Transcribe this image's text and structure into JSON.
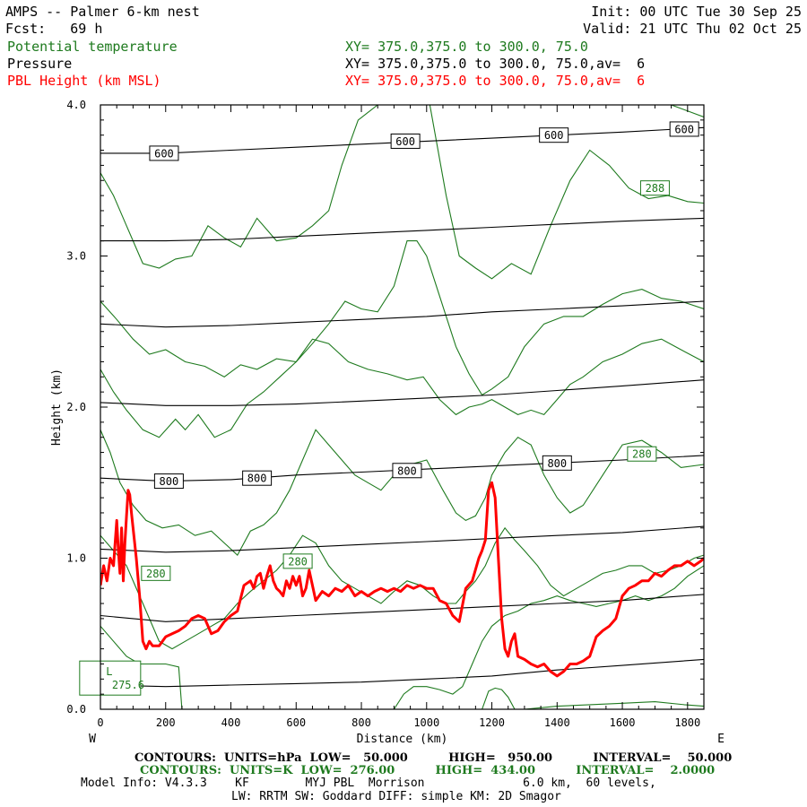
{
  "header": {
    "line1_left": "AMPS -- Palmer 6-km nest",
    "line2_left": "Fcst:   69 h",
    "line1_right": "Init: 00 UTC Tue 30 Sep 25",
    "line2_right": "Valid: 21 UTC Thu 02 Oct 25",
    "fields": [
      {
        "name": "Potential temperature",
        "xy": "XY= 375.0,375.0 to 300.0, 75.0",
        "color": "#1e7a1e"
      },
      {
        "name": "Pressure",
        "xy": "XY= 375.0,375.0 to 300.0, 75.0,av=  6",
        "color": "#000000"
      },
      {
        "name": "PBL Height (km MSL)",
        "xy": "XY= 375.0,375.0 to 300.0, 75.0,av=  6",
        "color": "#ff0000"
      }
    ]
  },
  "footer": {
    "contours_p": "CONTOURS:  UNITS=hPa  LOW=   50.000          HIGH=   950.00          INTERVAL=    50.000",
    "contours_t": "CONTOURS:  UNITS=K  LOW=  276.00          HIGH=  434.00          INTERVAL=    2.0000",
    "model_info": "Model Info: V4.3.3    KF        MYJ PBL  Morrison              6.0 km,  60 levels,",
    "model_info2": "LW: RRTM SW: Goddard DIFF: simple KM: 2D Smagor"
  },
  "chart_data": {
    "type": "line",
    "xlabel": "Distance (km)",
    "ylabel": "Height (km)",
    "xlim": [
      0,
      1850
    ],
    "ylim": [
      0,
      4.0
    ],
    "x_ticks": [
      "0",
      "200",
      "400",
      "600",
      "800",
      "1000",
      "1200",
      "1400",
      "1600",
      "1800"
    ],
    "y_ticks": [
      "0.0",
      "1.0",
      "2.0",
      "3.0",
      "4.0"
    ],
    "left_end_label": "W",
    "right_end_label": "E",
    "colors": {
      "pressure": "#000000",
      "theta": "#1e7a1e",
      "pbl": "#ff0000"
    },
    "pressure_contours": [
      {
        "x": [
          0,
          200,
          400,
          600,
          800,
          1000,
          1200,
          1400,
          1600,
          1850
        ],
        "y": [
          3.68,
          3.68,
          3.7,
          3.72,
          3.74,
          3.76,
          3.78,
          3.8,
          3.82,
          3.85
        ]
      },
      {
        "x": [
          0,
          200,
          400,
          600,
          800,
          1000,
          1200,
          1400,
          1600,
          1850
        ],
        "y": [
          3.1,
          3.1,
          3.11,
          3.13,
          3.15,
          3.17,
          3.19,
          3.21,
          3.23,
          3.25
        ]
      },
      {
        "x": [
          0,
          200,
          400,
          600,
          800,
          1000,
          1200,
          1400,
          1600,
          1850
        ],
        "y": [
          2.55,
          2.53,
          2.54,
          2.56,
          2.58,
          2.6,
          2.63,
          2.65,
          2.67,
          2.7
        ]
      },
      {
        "x": [
          0,
          200,
          400,
          600,
          800,
          1000,
          1200,
          1400,
          1600,
          1850
        ],
        "y": [
          2.03,
          2.01,
          2.01,
          2.02,
          2.04,
          2.06,
          2.08,
          2.11,
          2.14,
          2.18
        ]
      },
      {
        "x": [
          0,
          200,
          400,
          600,
          800,
          1000,
          1200,
          1400,
          1600,
          1850
        ],
        "y": [
          1.53,
          1.51,
          1.52,
          1.55,
          1.57,
          1.59,
          1.61,
          1.63,
          1.65,
          1.68
        ]
      },
      {
        "x": [
          0,
          200,
          400,
          600,
          800,
          1000,
          1200,
          1400,
          1600,
          1850
        ],
        "y": [
          1.06,
          1.04,
          1.05,
          1.07,
          1.09,
          1.11,
          1.13,
          1.15,
          1.17,
          1.21
        ]
      },
      {
        "x": [
          0,
          200,
          400,
          600,
          800,
          1000,
          1200,
          1400,
          1600,
          1850
        ],
        "y": [
          0.62,
          0.58,
          0.6,
          0.62,
          0.64,
          0.66,
          0.68,
          0.7,
          0.72,
          0.76
        ]
      },
      {
        "x": [
          0,
          200,
          400,
          600,
          800,
          1000,
          1200,
          1400,
          1600,
          1850
        ],
        "y": [
          0.16,
          0.15,
          0.16,
          0.17,
          0.18,
          0.2,
          0.22,
          0.26,
          0.29,
          0.33
        ]
      }
    ],
    "pressure_labels": [
      {
        "text": "600",
        "x": 195,
        "y": 3.68
      },
      {
        "text": "600",
        "x": 935,
        "y": 3.76
      },
      {
        "text": "600",
        "x": 1390,
        "y": 3.8
      },
      {
        "text": "600",
        "x": 1790,
        "y": 3.84
      },
      {
        "text": "800",
        "x": 210,
        "y": 1.51
      },
      {
        "text": "800",
        "x": 480,
        "y": 1.53
      },
      {
        "text": "800",
        "x": 940,
        "y": 1.58
      },
      {
        "text": "800",
        "x": 1400,
        "y": 1.63
      }
    ],
    "theta_contours": [
      {
        "x": [
          0,
          50,
          120,
          180,
          230,
          300,
          340,
          400,
          450,
          520,
          600,
          680,
          740,
          800,
          860,
          920,
          970,
          1020,
          1080,
          1140,
          1170,
          1230,
          1290,
          1350,
          1420,
          1480,
          1550,
          1620,
          1680,
          1750,
          1850
        ],
        "y": [
          4.0,
          4.0,
          4.0,
          4.0,
          4.0,
          4.0,
          4.0,
          4.0,
          4.0,
          4.0,
          4.0,
          4.0,
          4.0,
          4.0,
          4.0,
          4.0,
          4.0,
          4.0,
          4.0,
          4.0,
          4.0,
          4.0,
          4.0,
          4.0,
          4.0,
          4.0,
          4.0,
          4.0,
          4.0,
          4.0,
          3.92
        ]
      },
      {
        "x": [
          0,
          40,
          80,
          130,
          180,
          230,
          280,
          330,
          380,
          430,
          480,
          540,
          600,
          650,
          700,
          740,
          790,
          850,
          900,
          960,
          1010,
          1060,
          1100,
          1150,
          1200,
          1260,
          1320,
          1380,
          1440,
          1500,
          1560,
          1620,
          1680,
          1740,
          1800,
          1850
        ],
        "y": [
          3.55,
          3.4,
          3.2,
          2.95,
          2.92,
          2.98,
          3.0,
          3.2,
          3.12,
          3.06,
          3.25,
          3.1,
          3.12,
          3.2,
          3.3,
          3.6,
          3.9,
          4.0,
          4.0,
          4.0,
          4.0,
          3.4,
          3.0,
          2.92,
          2.85,
          2.95,
          2.88,
          3.2,
          3.5,
          3.7,
          3.6,
          3.45,
          3.38,
          3.4,
          3.36,
          3.35
        ]
      },
      {
        "x": [
          0,
          50,
          100,
          150,
          200,
          260,
          320,
          380,
          430,
          480,
          540,
          600,
          650,
          700,
          750,
          800,
          850,
          900,
          940,
          970,
          1000,
          1030,
          1060,
          1090,
          1130,
          1170,
          1200,
          1250,
          1300,
          1360,
          1420,
          1480,
          1540,
          1600,
          1660,
          1720,
          1780,
          1850
        ],
        "y": [
          2.7,
          2.58,
          2.45,
          2.35,
          2.38,
          2.3,
          2.27,
          2.2,
          2.28,
          2.25,
          2.32,
          2.3,
          2.42,
          2.55,
          2.7,
          2.65,
          2.63,
          2.8,
          3.1,
          3.1,
          3.0,
          2.8,
          2.6,
          2.4,
          2.22,
          2.08,
          2.12,
          2.2,
          2.4,
          2.55,
          2.6,
          2.6,
          2.68,
          2.75,
          2.78,
          2.72,
          2.7,
          2.65
        ]
      },
      {
        "x": [
          0,
          40,
          80,
          130,
          180,
          230,
          260,
          300,
          350,
          400,
          450,
          500,
          550,
          600,
          650,
          700,
          760,
          820,
          880,
          940,
          990,
          1040,
          1090,
          1130,
          1170,
          1200,
          1240,
          1280,
          1320,
          1360,
          1400,
          1440,
          1480,
          1540,
          1600,
          1660,
          1720,
          1780,
          1850
        ],
        "y": [
          2.25,
          2.1,
          1.98,
          1.85,
          1.8,
          1.92,
          1.85,
          1.95,
          1.8,
          1.85,
          2.02,
          2.1,
          2.2,
          2.3,
          2.45,
          2.42,
          2.3,
          2.25,
          2.22,
          2.18,
          2.2,
          2.05,
          1.95,
          2.0,
          2.02,
          2.05,
          2.0,
          1.95,
          1.98,
          1.95,
          2.05,
          2.15,
          2.2,
          2.3,
          2.35,
          2.42,
          2.45,
          2.38,
          2.3
        ]
      },
      {
        "x": [
          0,
          30,
          60,
          100,
          140,
          190,
          240,
          290,
          340,
          380,
          420,
          460,
          500,
          540,
          580,
          620,
          660,
          700,
          740,
          780,
          820,
          860,
          900,
          950,
          1000,
          1050,
          1090,
          1120,
          1150,
          1180,
          1200,
          1240,
          1280,
          1320,
          1360,
          1400,
          1440,
          1480,
          1540,
          1600,
          1660,
          1720,
          1780,
          1850
        ],
        "y": [
          1.85,
          1.7,
          1.5,
          1.35,
          1.25,
          1.2,
          1.22,
          1.15,
          1.18,
          1.1,
          1.02,
          1.18,
          1.22,
          1.3,
          1.45,
          1.65,
          1.85,
          1.75,
          1.65,
          1.55,
          1.5,
          1.45,
          1.55,
          1.62,
          1.65,
          1.45,
          1.3,
          1.25,
          1.28,
          1.4,
          1.55,
          1.7,
          1.8,
          1.75,
          1.55,
          1.4,
          1.3,
          1.35,
          1.55,
          1.75,
          1.78,
          1.7,
          1.6,
          1.62
        ]
      },
      {
        "x": [
          0,
          40,
          80,
          120,
          150,
          180,
          220,
          260,
          300,
          340,
          380,
          420,
          460,
          500,
          540,
          580,
          620,
          660,
          700,
          740,
          780,
          820,
          860,
          900,
          940,
          980,
          1020,
          1060,
          1090,
          1120,
          1150,
          1180,
          1210,
          1240,
          1270,
          1300,
          1340,
          1380,
          1420,
          1460,
          1500,
          1540,
          1580,
          1620,
          1660,
          1700,
          1740,
          1780,
          1820,
          1850
        ],
        "y": [
          1.15,
          1.05,
          0.95,
          0.75,
          0.6,
          0.45,
          0.4,
          0.45,
          0.5,
          0.55,
          0.6,
          0.7,
          0.78,
          0.85,
          0.92,
          1.02,
          1.15,
          1.1,
          0.95,
          0.85,
          0.8,
          0.75,
          0.7,
          0.78,
          0.85,
          0.82,
          0.75,
          0.7,
          0.7,
          0.78,
          0.85,
          0.95,
          1.1,
          1.2,
          1.12,
          1.05,
          0.95,
          0.82,
          0.75,
          0.8,
          0.85,
          0.9,
          0.92,
          0.95,
          0.95,
          0.9,
          0.92,
          0.95,
          1.0,
          1.02
        ]
      },
      {
        "x": [
          900,
          930,
          960,
          1000,
          1040,
          1080,
          1110,
          1140,
          1170,
          1200,
          1240,
          1280,
          1320,
          1360,
          1400,
          1440,
          1480,
          1520,
          1560,
          1600,
          1640,
          1680,
          1720,
          1760,
          1800,
          1850
        ],
        "y": [
          0.0,
          0.1,
          0.15,
          0.15,
          0.13,
          0.1,
          0.15,
          0.3,
          0.45,
          0.55,
          0.62,
          0.65,
          0.7,
          0.72,
          0.75,
          0.72,
          0.7,
          0.68,
          0.7,
          0.72,
          0.75,
          0.72,
          0.75,
          0.8,
          0.88,
          0.95
        ]
      },
      {
        "x": [
          1170,
          1190,
          1210,
          1230,
          1250,
          1270
        ],
        "y": [
          0.0,
          0.12,
          0.14,
          0.13,
          0.08,
          0.0
        ]
      },
      {
        "x": [
          1300,
          1400,
          1500,
          1600,
          1700,
          1790,
          1850
        ],
        "y": [
          0.0,
          0.02,
          0.03,
          0.04,
          0.05,
          0.03,
          0.02
        ]
      },
      {
        "x": [
          0,
          40,
          80,
          120,
          160,
          200,
          240,
          250
        ],
        "y": [
          0.55,
          0.45,
          0.35,
          0.3,
          0.3,
          0.3,
          0.28,
          0.0
        ]
      }
    ],
    "theta_labels": [
      {
        "text": "288",
        "x": 1700,
        "y": 3.45
      },
      {
        "text": "280",
        "x": 1660,
        "y": 1.69
      },
      {
        "text": "280",
        "x": 170,
        "y": 0.9
      },
      {
        "text": "280",
        "x": 605,
        "y": 0.98
      },
      {
        "text": "L",
        "x": 60,
        "y": 0.26
      },
      {
        "text": "275.6",
        "x": 85,
        "y": 0.16
      }
    ],
    "pbl_height": {
      "name": "PBL Height (km MSL)",
      "x": [
        0,
        10,
        20,
        30,
        40,
        50,
        55,
        60,
        65,
        70,
        75,
        80,
        85,
        90,
        95,
        100,
        110,
        120,
        130,
        140,
        150,
        160,
        180,
        200,
        220,
        240,
        260,
        280,
        300,
        320,
        340,
        360,
        380,
        400,
        420,
        440,
        460,
        470,
        480,
        490,
        500,
        510,
        520,
        530,
        540,
        550,
        560,
        570,
        580,
        590,
        600,
        610,
        620,
        630,
        640,
        660,
        680,
        700,
        720,
        740,
        760,
        780,
        800,
        820,
        840,
        860,
        880,
        900,
        920,
        940,
        960,
        980,
        1000,
        1020,
        1040,
        1060,
        1080,
        1100,
        1120,
        1140,
        1160,
        1170,
        1180,
        1190,
        1200,
        1210,
        1220,
        1230,
        1240,
        1250,
        1260,
        1270,
        1280,
        1300,
        1320,
        1340,
        1360,
        1380,
        1400,
        1420,
        1440,
        1460,
        1480,
        1500,
        1520,
        1540,
        1560,
        1580,
        1600,
        1620,
        1640,
        1660,
        1680,
        1700,
        1720,
        1740,
        1760,
        1780,
        1800,
        1820,
        1840,
        1850
      ],
      "y": [
        0.82,
        0.95,
        0.85,
        1.0,
        0.95,
        1.25,
        1.05,
        0.9,
        1.2,
        0.85,
        1.1,
        1.28,
        1.45,
        1.42,
        1.3,
        1.2,
        1.0,
        0.75,
        0.45,
        0.4,
        0.45,
        0.42,
        0.42,
        0.48,
        0.5,
        0.52,
        0.55,
        0.6,
        0.62,
        0.6,
        0.5,
        0.52,
        0.58,
        0.62,
        0.65,
        0.82,
        0.85,
        0.8,
        0.88,
        0.9,
        0.8,
        0.88,
        0.95,
        0.85,
        0.8,
        0.78,
        0.75,
        0.85,
        0.8,
        0.88,
        0.82,
        0.88,
        0.75,
        0.8,
        0.92,
        0.72,
        0.78,
        0.75,
        0.8,
        0.78,
        0.82,
        0.75,
        0.78,
        0.75,
        0.78,
        0.8,
        0.78,
        0.8,
        0.78,
        0.82,
        0.8,
        0.82,
        0.8,
        0.8,
        0.72,
        0.7,
        0.62,
        0.58,
        0.8,
        0.85,
        1.0,
        1.05,
        1.12,
        1.45,
        1.5,
        1.4,
        1.0,
        0.6,
        0.4,
        0.35,
        0.45,
        0.5,
        0.35,
        0.33,
        0.3,
        0.28,
        0.3,
        0.25,
        0.22,
        0.25,
        0.3,
        0.3,
        0.32,
        0.35,
        0.48,
        0.52,
        0.55,
        0.6,
        0.75,
        0.8,
        0.82,
        0.85,
        0.85,
        0.9,
        0.88,
        0.92,
        0.95,
        0.95,
        0.98,
        0.95,
        0.98,
        1.0
      ]
    }
  }
}
